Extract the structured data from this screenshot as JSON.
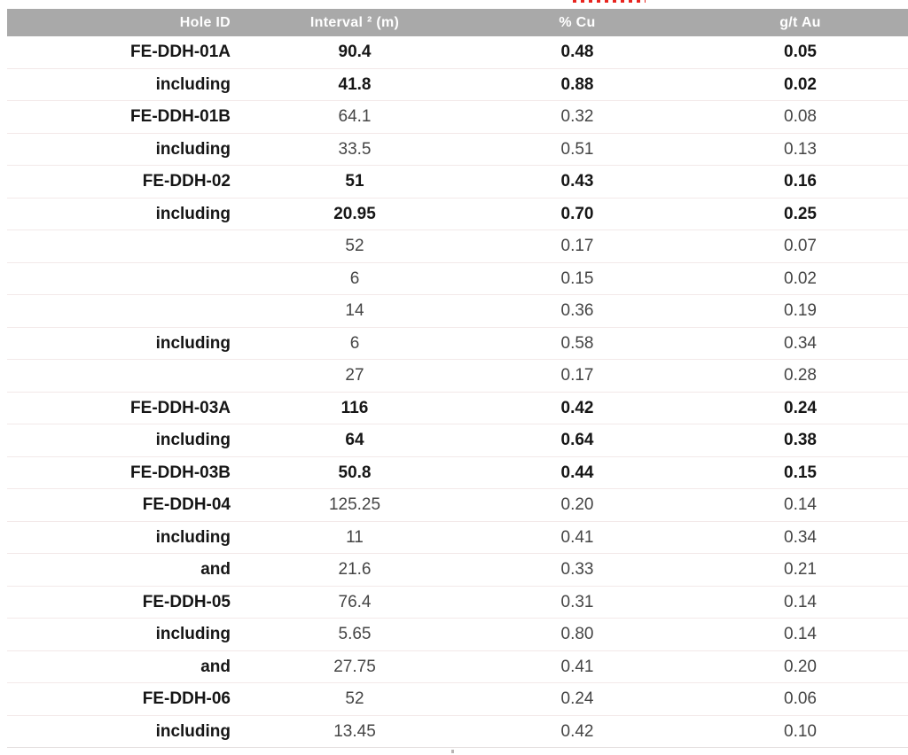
{
  "colors": {
    "header_bg": "#a9a9a9",
    "header_text": "#ffffff",
    "bold_text": "#161616",
    "regular_text": "#454545",
    "row_divider": "#f3e9e9",
    "spellcheck_underline": "#e8251f"
  },
  "table": {
    "columns": [
      "Hole ID",
      "Interval ² (m)",
      "% Cu",
      "g/t Au"
    ],
    "rows": [
      {
        "hole_id": "FE-DDH-01A",
        "interval": "90.4",
        "cu": "0.48",
        "au": "0.05",
        "values_bold": true
      },
      {
        "hole_id": "including",
        "interval": "41.8",
        "cu": "0.88",
        "au": "0.02",
        "values_bold": true
      },
      {
        "hole_id": "FE-DDH-01B",
        "interval": "64.1",
        "cu": "0.32",
        "au": "0.08",
        "values_bold": false
      },
      {
        "hole_id": "including",
        "interval": "33.5",
        "cu": "0.51",
        "au": "0.13",
        "values_bold": false
      },
      {
        "hole_id": "FE-DDH-02",
        "interval": "51",
        "cu": "0.43",
        "au": "0.16",
        "values_bold": true
      },
      {
        "hole_id": "including",
        "interval": "20.95",
        "cu": "0.70",
        "au": "0.25",
        "values_bold": true
      },
      {
        "hole_id": "",
        "interval": "52",
        "cu": "0.17",
        "au": "0.07",
        "values_bold": false
      },
      {
        "hole_id": "",
        "interval": "6",
        "cu": "0.15",
        "au": "0.02",
        "values_bold": false
      },
      {
        "hole_id": "",
        "interval": "14",
        "cu": "0.36",
        "au": "0.19",
        "values_bold": false
      },
      {
        "hole_id": "including",
        "interval": "6",
        "cu": "0.58",
        "au": "0.34",
        "values_bold": false
      },
      {
        "hole_id": "",
        "interval": "27",
        "cu": "0.17",
        "au": "0.28",
        "values_bold": false
      },
      {
        "hole_id": "FE-DDH-03A",
        "interval": "116",
        "cu": "0.42",
        "au": "0.24",
        "values_bold": true
      },
      {
        "hole_id": "including",
        "interval": "64",
        "cu": "0.64",
        "au": "0.38",
        "values_bold": true
      },
      {
        "hole_id": "FE-DDH-03B",
        "interval": "50.8",
        "cu": "0.44",
        "au": "0.15",
        "values_bold": true
      },
      {
        "hole_id": "FE-DDH-04",
        "interval": "125.25",
        "cu": "0.20",
        "au": "0.14",
        "values_bold": false
      },
      {
        "hole_id": "including",
        "interval": "11",
        "cu": "0.41",
        "au": "0.34",
        "values_bold": false
      },
      {
        "hole_id": "and",
        "interval": "21.6",
        "cu": "0.33",
        "au": "0.21",
        "values_bold": false
      },
      {
        "hole_id": "FE-DDH-05",
        "interval": "76.4",
        "cu": "0.31",
        "au": "0.14",
        "values_bold": false
      },
      {
        "hole_id": "including",
        "interval": "5.65",
        "cu": "0.80",
        "au": "0.14",
        "values_bold": false
      },
      {
        "hole_id": "and",
        "interval": "27.75",
        "cu": "0.41",
        "au": "0.20",
        "values_bold": false
      },
      {
        "hole_id": "FE-DDH-06",
        "interval": "52",
        "cu": "0.24",
        "au": "0.06",
        "values_bold": false
      },
      {
        "hole_id": "including",
        "interval": "13.45",
        "cu": "0.42",
        "au": "0.10",
        "values_bold": false
      }
    ]
  }
}
